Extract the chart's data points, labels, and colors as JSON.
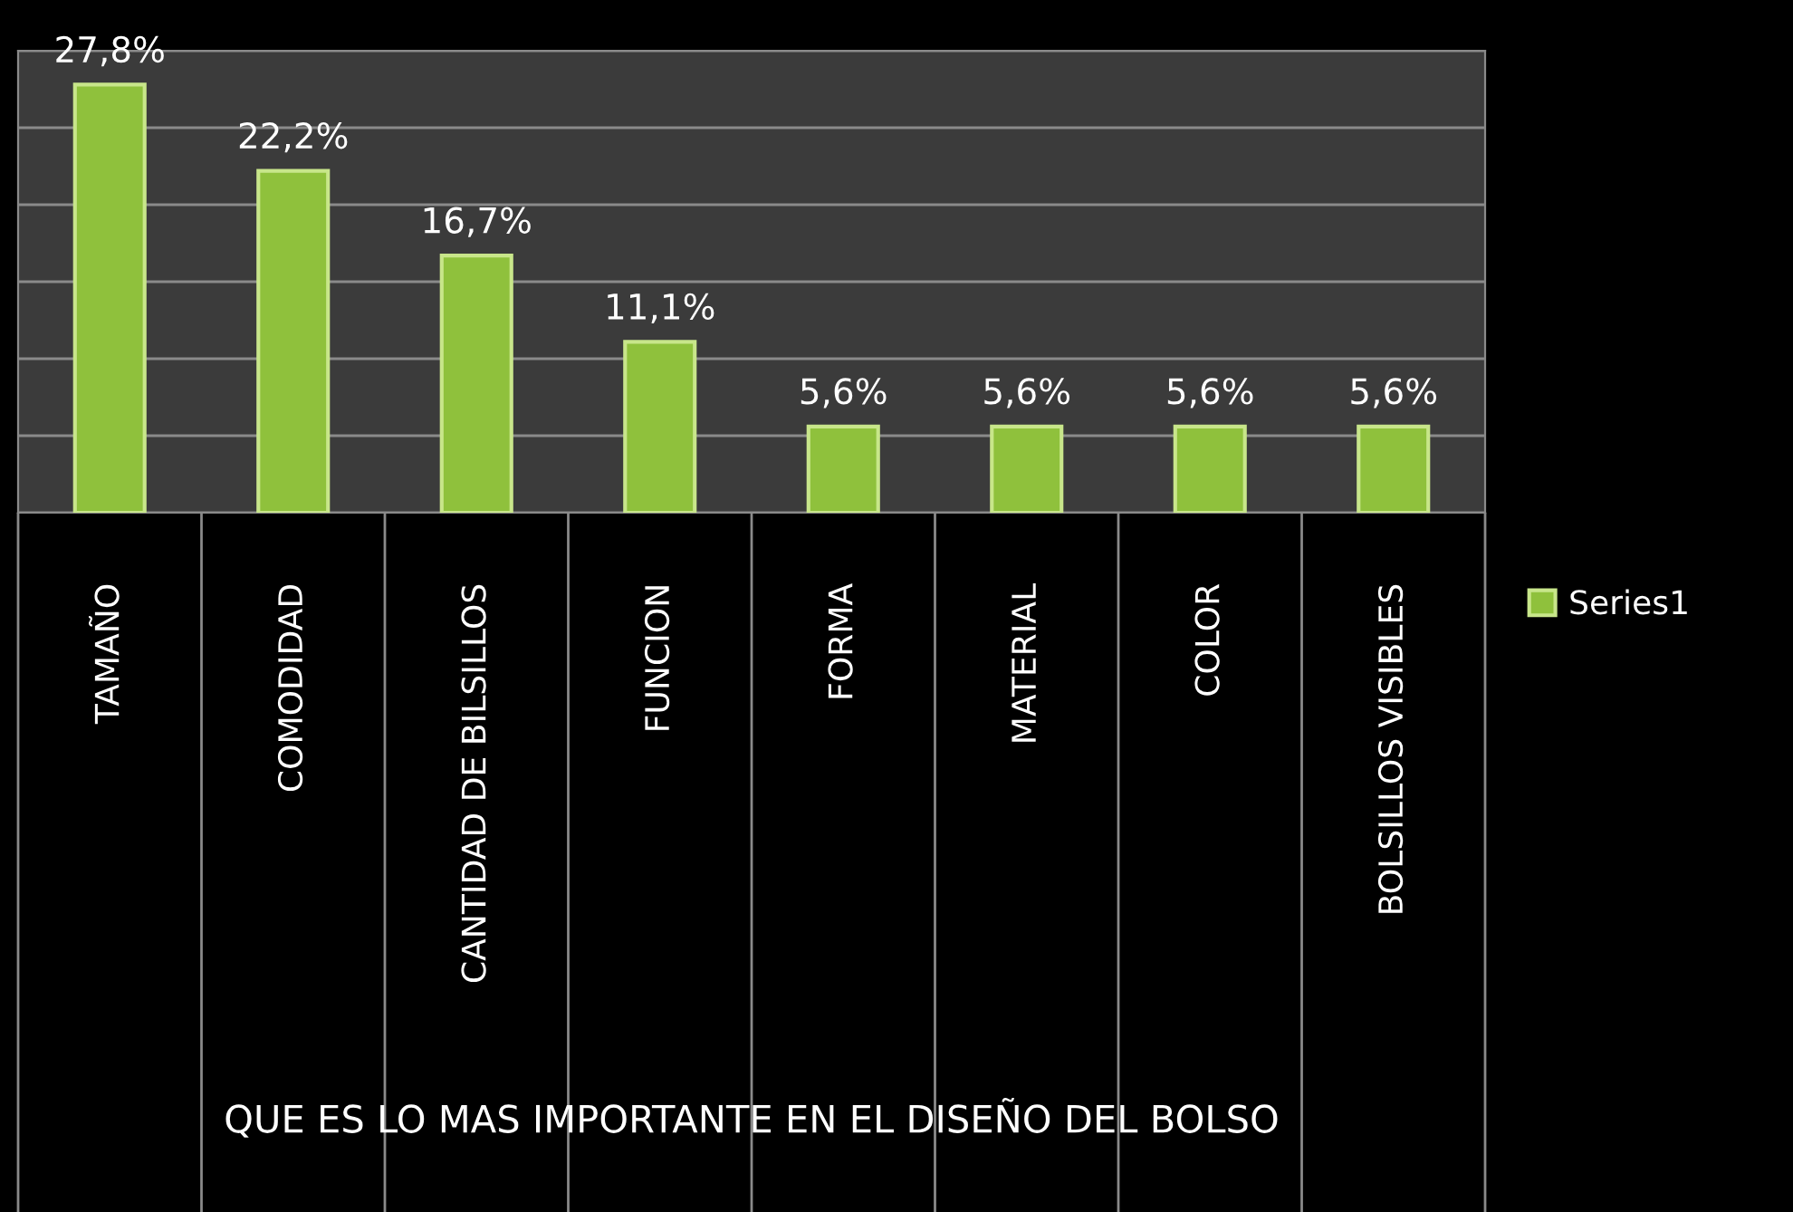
{
  "chart_data": {
    "type": "bar",
    "xlabel": "QUE ES LO MAS IMPORTANTE EN EL DISEÑO DEL BOLSO",
    "categories": [
      "TAMAÑO",
      "COMODIDAD",
      "CANTIDAD DE BILSILLOS",
      "FUNCION",
      "FORMA",
      "MATERIAL",
      "COLOR",
      "BOLSILLOS VISIBLES"
    ],
    "series": [
      {
        "name": "Series1",
        "color": "#8fc13c",
        "values": [
          27.8,
          22.2,
          16.7,
          11.1,
          5.6,
          5.6,
          5.6,
          5.6
        ],
        "value_labels": [
          "27,8%",
          "22,2%",
          "16,7%",
          "11,1%",
          "5,6%",
          "5,6%",
          "5,6%",
          "5,6%"
        ]
      }
    ],
    "ylim": [
      0,
      30
    ],
    "yticks": [
      {
        "value": 0,
        "label": null
      },
      {
        "value": 5,
        "label": null
      },
      {
        "value": 10,
        "label": null
      },
      {
        "value": 15,
        "label": null
      },
      {
        "value": 20,
        "label": null
      },
      {
        "value": 25,
        "label": null
      },
      {
        "value": 30,
        "label": null
      }
    ],
    "grid": "y",
    "legend": "right",
    "tick_labels": "x"
  }
}
